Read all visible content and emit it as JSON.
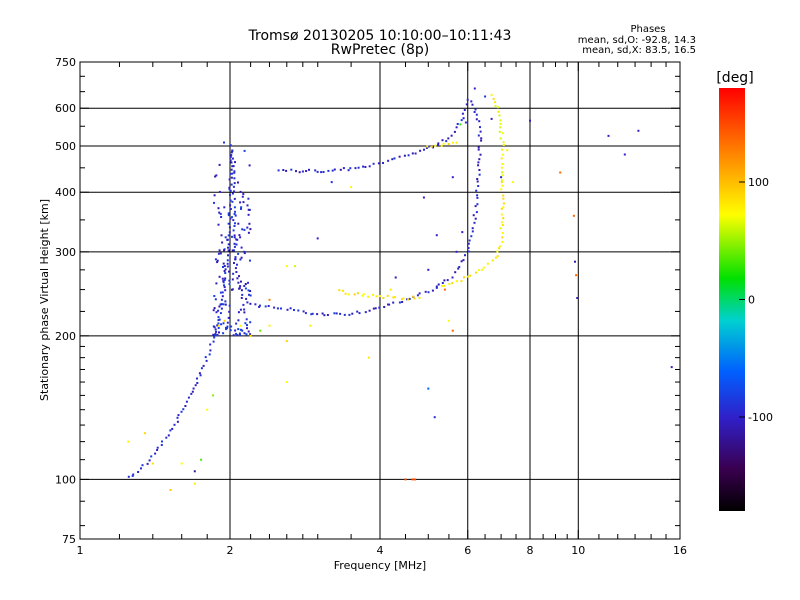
{
  "chart_data": {
    "type": "scatter",
    "title": "Tromsø 20130205 10:10:00–10:11:43",
    "subtitle": "RwPretec (8p)",
    "xlabel": "Frequency [MHz]",
    "ylabel": "Stationary phase Virtual Height [km]",
    "x_scale": "log",
    "y_scale": "log",
    "xlim": [
      1,
      16
    ],
    "ylim": [
      75,
      750
    ],
    "x_ticks": [
      1,
      2,
      4,
      6,
      8,
      10,
      16
    ],
    "x_tick_labels": [
      "1",
      "2",
      "4",
      "6",
      "8",
      "10",
      "16"
    ],
    "y_ticks": [
      75,
      100,
      200,
      300,
      400,
      500,
      600,
      750
    ],
    "y_tick_labels": [
      "75",
      "100",
      "200",
      "300",
      "400",
      "500",
      "600",
      "750"
    ],
    "grid": true,
    "stats": {
      "title": "Phases",
      "line_o": "mean, sd,O: -92.8, 14.3",
      "line_x": "mean, sd,X: 83.5, 16.5"
    },
    "colorbar": {
      "label": "[deg]",
      "range": [
        -180,
        180
      ],
      "ticks": [
        100,
        0,
        -100
      ],
      "tick_labels": [
        "100",
        "0",
        "-100"
      ]
    },
    "traces": [
      {
        "mode": "O",
        "phase": -95,
        "points": [
          [
            1.25,
            101
          ],
          [
            1.32,
            105
          ],
          [
            1.38,
            110
          ],
          [
            1.45,
            118
          ],
          [
            1.5,
            124
          ],
          [
            1.55,
            130
          ],
          [
            1.6,
            138
          ],
          [
            1.65,
            148
          ],
          [
            1.7,
            158
          ],
          [
            1.75,
            168
          ],
          [
            1.8,
            180
          ],
          [
            1.85,
            195
          ],
          [
            1.9,
            215
          ],
          [
            1.95,
            250
          ],
          [
            1.98,
            300
          ],
          [
            2.0,
            400
          ],
          [
            2.02,
            500
          ],
          [
            2.05,
            300
          ],
          [
            2.08,
            260
          ],
          [
            2.12,
            240
          ],
          [
            2.2,
            232
          ],
          [
            2.35,
            230
          ],
          [
            2.6,
            228
          ],
          [
            3.0,
            222
          ],
          [
            3.4,
            222
          ],
          [
            3.8,
            226
          ],
          [
            4.2,
            232
          ],
          [
            4.6,
            240
          ],
          [
            5.0,
            248
          ],
          [
            5.2,
            252
          ]
        ]
      },
      {
        "mode": "X",
        "phase": 80,
        "points": [
          [
            3.3,
            248
          ],
          [
            3.6,
            244
          ],
          [
            4.0,
            242
          ],
          [
            4.4,
            240
          ],
          [
            4.8,
            240
          ]
        ]
      },
      {
        "mode": "X",
        "phase": 75,
        "points": [
          [
            5.3,
            255
          ],
          [
            5.7,
            260
          ],
          [
            6.1,
            268
          ],
          [
            6.5,
            278
          ],
          [
            6.8,
            290
          ],
          [
            7.0,
            310
          ],
          [
            7.05,
            360
          ],
          [
            7.05,
            450
          ],
          [
            7.05,
            500
          ],
          [
            6.95,
            580
          ],
          [
            6.8,
            620
          ],
          [
            6.7,
            640
          ]
        ]
      },
      {
        "mode": "O",
        "phase": -100,
        "points": [
          [
            5.2,
            252
          ],
          [
            5.5,
            262
          ],
          [
            5.8,
            280
          ],
          [
            6.0,
            300
          ],
          [
            6.15,
            330
          ],
          [
            6.25,
            380
          ],
          [
            6.3,
            420
          ],
          [
            6.35,
            480
          ],
          [
            6.35,
            520
          ],
          [
            6.3,
            560
          ],
          [
            6.2,
            600
          ],
          [
            6.1,
            620
          ]
        ]
      },
      {
        "mode": "O",
        "phase": -98,
        "points": [
          [
            2.5,
            445
          ],
          [
            2.8,
            443
          ],
          [
            3.1,
            442
          ],
          [
            3.5,
            448
          ],
          [
            3.9,
            458
          ],
          [
            4.3,
            470
          ],
          [
            4.8,
            488
          ],
          [
            5.2,
            502
          ],
          [
            5.5,
            520
          ],
          [
            5.7,
            545
          ],
          [
            5.85,
            575
          ],
          [
            5.95,
            610
          ],
          [
            6.0,
            625
          ]
        ]
      },
      {
        "mode": "X",
        "phase": 78,
        "points": [
          [
            5.0,
            498
          ],
          [
            5.4,
            505
          ],
          [
            5.7,
            508
          ]
        ]
      }
    ],
    "scatter_points": [
      [
        1.25,
        120,
        75
      ],
      [
        1.4,
        108,
        85
      ],
      [
        1.35,
        125,
        90
      ],
      [
        1.52,
        95,
        95
      ],
      [
        1.6,
        108,
        70
      ],
      [
        1.7,
        104,
        -120
      ],
      [
        1.75,
        110,
        35
      ],
      [
        1.8,
        140,
        70
      ],
      [
        1.85,
        150,
        45
      ],
      [
        1.7,
        98,
        80
      ],
      [
        1.9,
        210,
        80
      ],
      [
        1.95,
        215,
        90
      ],
      [
        2.1,
        210,
        70
      ],
      [
        2.2,
        200,
        85
      ],
      [
        2.3,
        205,
        40
      ],
      [
        2.4,
        210,
        75
      ],
      [
        2.6,
        195,
        90
      ],
      [
        2.9,
        210,
        80
      ],
      [
        2.4,
        238,
        130
      ],
      [
        2.6,
        280,
        75
      ],
      [
        2.7,
        280,
        60
      ],
      [
        3.0,
        320,
        -100
      ],
      [
        3.2,
        420,
        -90
      ],
      [
        3.5,
        410,
        75
      ],
      [
        2.6,
        160,
        70
      ],
      [
        3.8,
        180,
        80
      ],
      [
        4.2,
        250,
        80
      ],
      [
        4.5,
        100,
        150
      ],
      [
        4.65,
        100,
        150
      ],
      [
        4.7,
        100,
        150
      ],
      [
        5.0,
        155,
        -60
      ],
      [
        5.15,
        135,
        -95
      ],
      [
        5.0,
        275,
        -100
      ],
      [
        4.3,
        265,
        -110
      ],
      [
        5.2,
        325,
        -100
      ],
      [
        5.4,
        250,
        140
      ],
      [
        5.5,
        215,
        70
      ],
      [
        5.6,
        205,
        140
      ],
      [
        5.7,
        300,
        -100
      ],
      [
        5.85,
        330,
        -100
      ],
      [
        5.8,
        555,
        30
      ],
      [
        5.95,
        560,
        -90
      ],
      [
        6.2,
        660,
        -100
      ],
      [
        6.5,
        635,
        -90
      ],
      [
        6.7,
        570,
        -100
      ],
      [
        7.2,
        490,
        75
      ],
      [
        7.4,
        420,
        75
      ],
      [
        7.0,
        430,
        -100
      ],
      [
        8.0,
        565,
        -100
      ],
      [
        9.2,
        440,
        140
      ],
      [
        9.8,
        357,
        140
      ],
      [
        9.9,
        268,
        140
      ],
      [
        9.85,
        286,
        -110
      ],
      [
        9.95,
        240,
        -100
      ],
      [
        11.5,
        525,
        -100
      ],
      [
        12.4,
        480,
        -100
      ],
      [
        13.2,
        538,
        -100
      ],
      [
        15.4,
        172,
        -100
      ],
      [
        5.6,
        430,
        -100
      ],
      [
        4.9,
        390,
        -100
      ]
    ]
  }
}
